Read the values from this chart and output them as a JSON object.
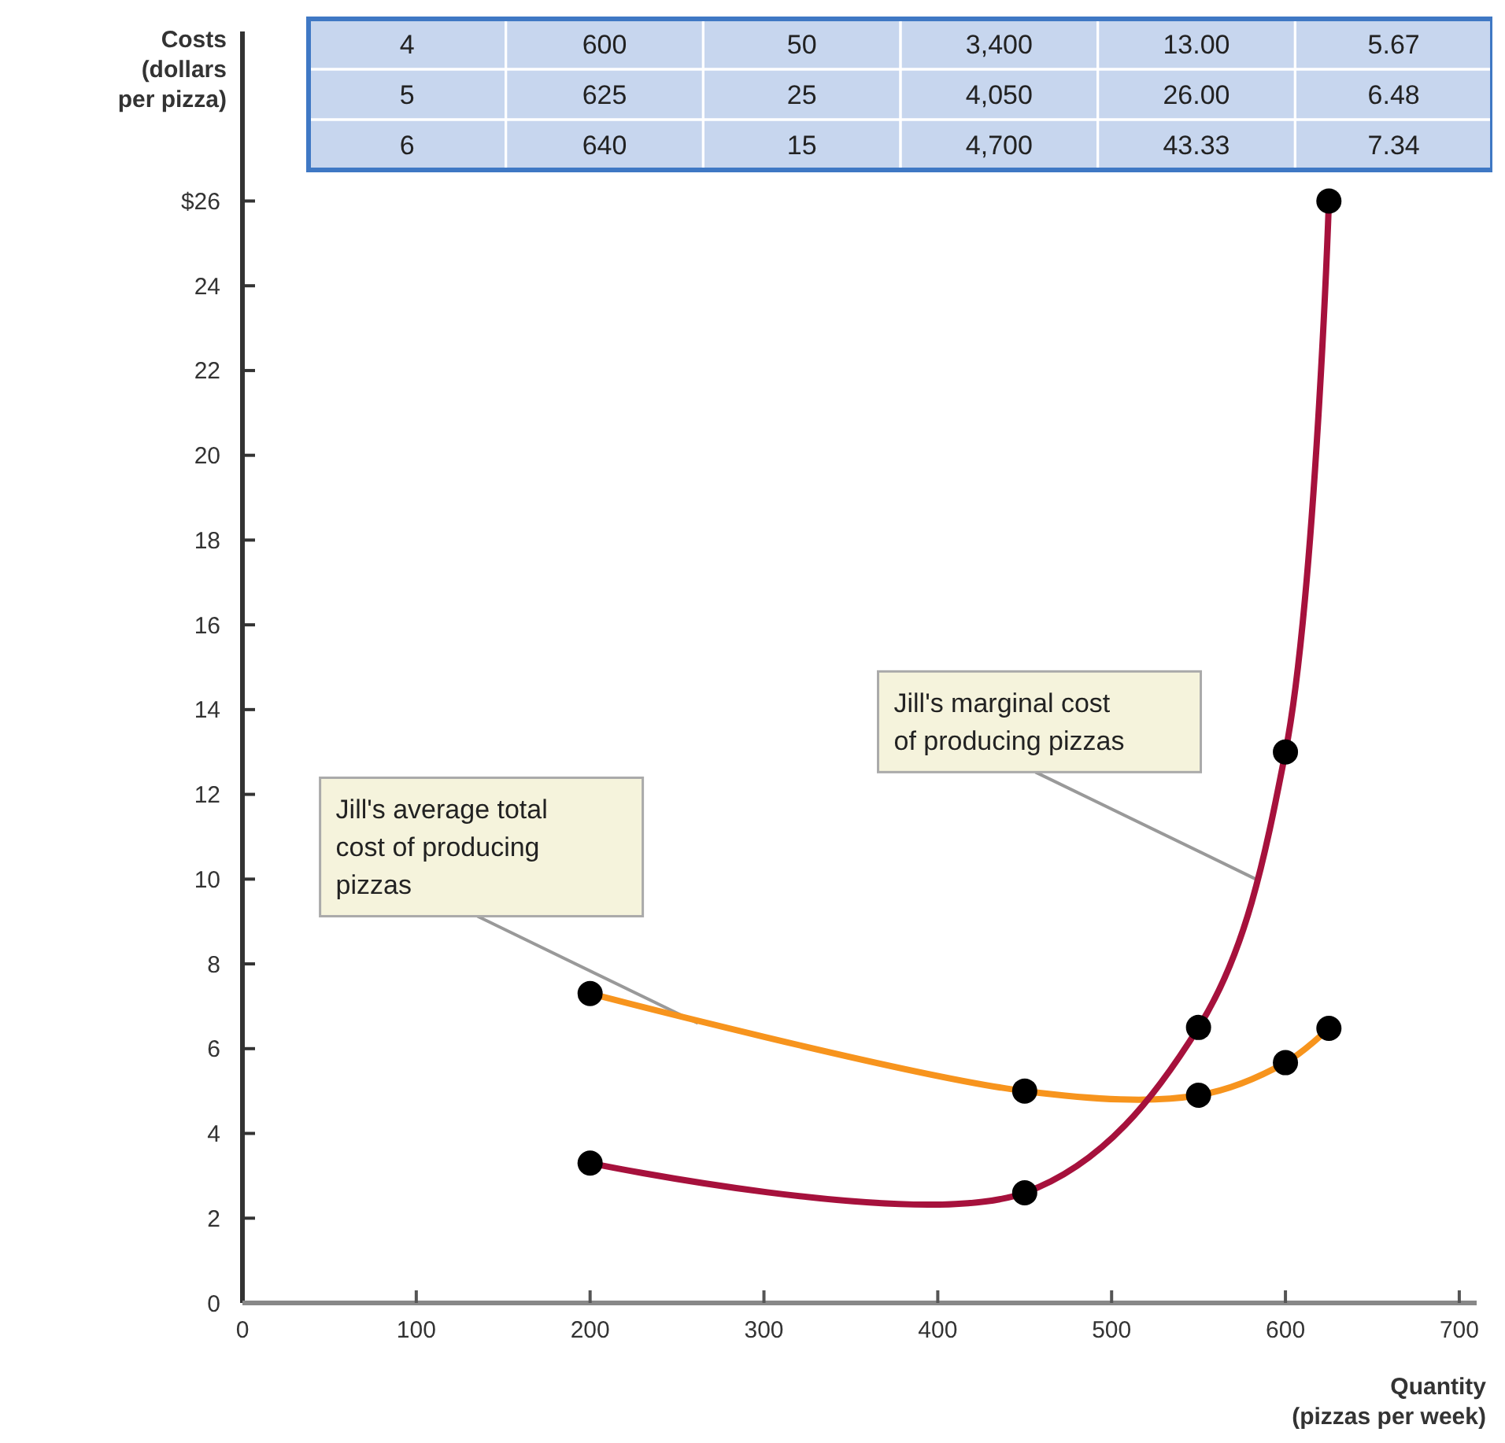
{
  "chart_data": {
    "type": "line",
    "ylabel": "Costs\n(dollars\nper pizza)",
    "xlabel": "Quantity\n(pizzas per week)",
    "xlim": [
      0,
      710
    ],
    "xticks": [
      0,
      100,
      200,
      300,
      400,
      500,
      600,
      700
    ],
    "ylim": [
      0,
      30
    ],
    "yticks": [
      {
        "value": 0,
        "label": "0"
      },
      2,
      4,
      6,
      8,
      10,
      12,
      14,
      16,
      18,
      20,
      22,
      24,
      {
        "value": 26,
        "label": "$26"
      }
    ],
    "marker": "circle",
    "grid": false,
    "series": [
      {
        "color": "#f7941d",
        "x": [
          200,
          450,
          550,
          600,
          625
        ],
        "values": [
          7.3,
          5.0,
          4.9,
          5.67,
          6.48
        ]
      },
      {
        "color": "#a6113c",
        "x": [
          200,
          450,
          550,
          600,
          625
        ],
        "values": [
          3.3,
          2.6,
          6.5,
          13.0,
          26.0
        ]
      }
    ],
    "annotations": [
      "4",
      "600",
      "50",
      "3,400",
      "13.00",
      "5.67",
      "5",
      "625",
      "25",
      "4,050",
      "26.00",
      "6.48",
      "6",
      "640",
      "15",
      "4,700",
      "43.33",
      "7.34",
      {
        "text": "Jill's average total cost of producing pizzas",
        "x": 262,
        "y": 6.6
      },
      {
        "text": "Jill's marginal cost of producing pizzas",
        "x": 583,
        "y": 10
      }
    ]
  }
}
